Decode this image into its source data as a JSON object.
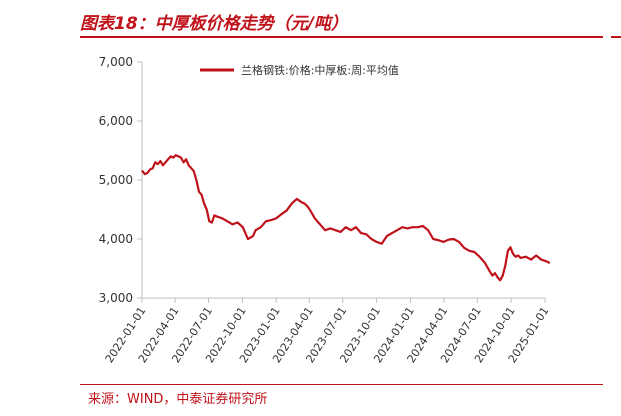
{
  "figure": {
    "title": "图表18：中厚板价格走势（元/吨）",
    "source": "来源：WIND，中泰证券研究所"
  },
  "colors": {
    "accent": "#c0121a",
    "series": "#c0121a",
    "axis": "#bfbfbf",
    "tick_text": "#333333"
  },
  "chart_data": {
    "type": "line",
    "title": "",
    "xlabel": "",
    "ylabel": "",
    "ylim": [
      3000,
      7000
    ],
    "yticks": [
      3000,
      4000,
      5000,
      6000,
      7000
    ],
    "ytick_labels": [
      "3,000",
      "4,000",
      "5,000",
      "6,000",
      "7,000"
    ],
    "xlim": [
      "2022-01-01",
      "2025-01-01"
    ],
    "xticks": [
      "2022-01-01",
      "2022-04-01",
      "2022-07-01",
      "2022-10-01",
      "2023-01-01",
      "2023-04-01",
      "2023-07-01",
      "2023-10-01",
      "2024-01-01",
      "2024-04-01",
      "2024-07-01",
      "2024-10-01",
      "2025-01-01"
    ],
    "grid": false,
    "legend": "top",
    "series": [
      {
        "name": "兰格钢铁:价格:中厚板:周:平均值",
        "x": [
          "2022-01-02",
          "2022-01-09",
          "2022-01-16",
          "2022-01-23",
          "2022-01-30",
          "2022-02-06",
          "2022-02-13",
          "2022-02-20",
          "2022-02-27",
          "2022-03-06",
          "2022-03-13",
          "2022-03-20",
          "2022-03-27",
          "2022-04-03",
          "2022-04-10",
          "2022-04-17",
          "2022-04-24",
          "2022-05-01",
          "2022-05-08",
          "2022-05-15",
          "2022-05-22",
          "2022-05-29",
          "2022-06-05",
          "2022-06-12",
          "2022-06-19",
          "2022-06-26",
          "2022-07-03",
          "2022-07-10",
          "2022-07-17",
          "2022-07-24",
          "2022-08-07",
          "2022-08-21",
          "2022-09-04",
          "2022-09-18",
          "2022-10-02",
          "2022-10-16",
          "2022-10-30",
          "2022-11-06",
          "2022-11-20",
          "2022-12-04",
          "2022-12-18",
          "2023-01-01",
          "2023-01-15",
          "2023-01-29",
          "2023-02-12",
          "2023-02-26",
          "2023-03-05",
          "2023-03-12",
          "2023-03-19",
          "2023-03-26",
          "2023-04-02",
          "2023-04-16",
          "2023-04-30",
          "2023-05-14",
          "2023-05-28",
          "2023-06-11",
          "2023-06-25",
          "2023-07-09",
          "2023-07-23",
          "2023-08-06",
          "2023-08-20",
          "2023-09-03",
          "2023-09-17",
          "2023-10-01",
          "2023-10-15",
          "2023-10-29",
          "2023-11-12",
          "2023-11-26",
          "2023-12-10",
          "2023-12-24",
          "2024-01-07",
          "2024-01-21",
          "2024-02-04",
          "2024-02-18",
          "2024-03-03",
          "2024-03-17",
          "2024-03-31",
          "2024-04-14",
          "2024-04-28",
          "2024-05-12",
          "2024-05-26",
          "2024-06-09",
          "2024-06-23",
          "2024-07-07",
          "2024-07-21",
          "2024-08-04",
          "2024-08-11",
          "2024-08-18",
          "2024-08-25",
          "2024-09-01",
          "2024-09-08",
          "2024-09-15",
          "2024-09-22",
          "2024-09-29",
          "2024-10-06",
          "2024-10-13",
          "2024-10-20",
          "2024-10-27",
          "2024-11-10",
          "2024-11-24",
          "2024-12-08",
          "2024-12-22",
          "2025-01-05",
          "2025-01-12"
        ],
        "values": [
          5150,
          5100,
          5120,
          5180,
          5200,
          5300,
          5270,
          5320,
          5250,
          5300,
          5350,
          5400,
          5380,
          5420,
          5400,
          5380,
          5300,
          5350,
          5250,
          5200,
          5150,
          5000,
          4800,
          4750,
          4600,
          4500,
          4300,
          4280,
          4400,
          4380,
          4350,
          4300,
          4250,
          4280,
          4200,
          4000,
          4050,
          4150,
          4200,
          4300,
          4320,
          4350,
          4420,
          4480,
          4600,
          4680,
          4650,
          4620,
          4600,
          4560,
          4500,
          4350,
          4250,
          4150,
          4180,
          4150,
          4120,
          4200,
          4150,
          4200,
          4100,
          4080,
          4000,
          3950,
          3920,
          4050,
          4100,
          4150,
          4200,
          4180,
          4200,
          4200,
          4220,
          4150,
          4000,
          3980,
          3950,
          3990,
          4000,
          3950,
          3850,
          3800,
          3780,
          3700,
          3600,
          3450,
          3380,
          3420,
          3350,
          3300,
          3380,
          3550,
          3800,
          3860,
          3750,
          3700,
          3720,
          3680,
          3700,
          3650,
          3720,
          3650,
          3620,
          3600
        ]
      }
    ]
  }
}
